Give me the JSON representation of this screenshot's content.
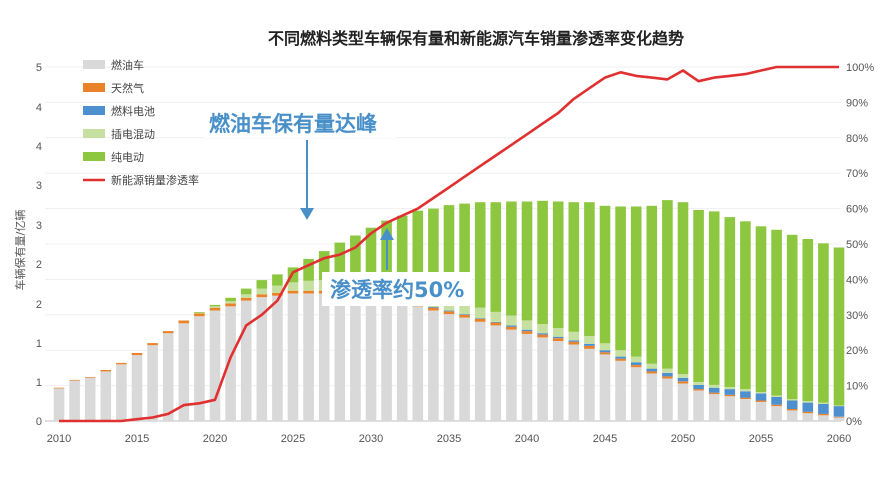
{
  "chart_data": {
    "type": "bar",
    "stacked": true,
    "title": "不同燃料类型车辆保有量和新能源汽车销量渗透率变化趋势",
    "ylabel": "车辆保有量/亿辆",
    "ylim": [
      0,
      5
    ],
    "y2lim": [
      0,
      100
    ],
    "y_ticks": [
      "0",
      "1",
      "1",
      "2",
      "2",
      "3",
      "3",
      "4",
      "4",
      "5"
    ],
    "y2_ticks": [
      "0%",
      "10%",
      "20%",
      "30%",
      "40%",
      "50%",
      "60%",
      "70%",
      "80%",
      "90%",
      "100%"
    ],
    "x_ticks": [
      "2010",
      "2015",
      "2020",
      "2025",
      "2030",
      "2035",
      "2040",
      "2045",
      "2050",
      "2055",
      "2060"
    ],
    "years": [
      2010,
      2011,
      2012,
      2013,
      2014,
      2015,
      2016,
      2017,
      2018,
      2019,
      2020,
      2021,
      2022,
      2023,
      2024,
      2025,
      2026,
      2027,
      2028,
      2029,
      2030,
      2031,
      2032,
      2033,
      2034,
      2035,
      2036,
      2037,
      2038,
      2039,
      2040,
      2041,
      2042,
      2043,
      2044,
      2045,
      2046,
      2047,
      2048,
      2049,
      2050,
      2051,
      2052,
      2053,
      2054,
      2055,
      2056,
      2057,
      2058,
      2059,
      2060
    ],
    "series": [
      {
        "name": "燃油车",
        "color": "#d9d9d9",
        "values": [
          0.46,
          0.57,
          0.61,
          0.7,
          0.8,
          0.93,
          1.07,
          1.24,
          1.38,
          1.48,
          1.56,
          1.62,
          1.7,
          1.75,
          1.77,
          1.8,
          1.8,
          1.8,
          1.8,
          1.78,
          1.75,
          1.71,
          1.67,
          1.62,
          1.56,
          1.51,
          1.46,
          1.4,
          1.35,
          1.29,
          1.23,
          1.18,
          1.13,
          1.08,
          1.02,
          0.94,
          0.85,
          0.76,
          0.67,
          0.6,
          0.53,
          0.43,
          0.38,
          0.35,
          0.31,
          0.27,
          0.21,
          0.15,
          0.11,
          0.08,
          0.05
        ]
      },
      {
        "name": "天然气",
        "color": "#e98228",
        "values": [
          0.01,
          0.01,
          0.01,
          0.02,
          0.02,
          0.03,
          0.03,
          0.03,
          0.04,
          0.04,
          0.04,
          0.04,
          0.04,
          0.04,
          0.04,
          0.04,
          0.04,
          0.04,
          0.04,
          0.04,
          0.04,
          0.04,
          0.04,
          0.04,
          0.04,
          0.04,
          0.04,
          0.04,
          0.04,
          0.04,
          0.04,
          0.04,
          0.04,
          0.04,
          0.04,
          0.03,
          0.03,
          0.03,
          0.03,
          0.03,
          0.03,
          0.02,
          0.02,
          0.02,
          0.02,
          0.02,
          0.02,
          0.02,
          0.02,
          0.02,
          0.01
        ]
      },
      {
        "name": "燃料电池",
        "color": "#4e8fcf",
        "values": [
          0,
          0,
          0,
          0,
          0,
          0,
          0,
          0,
          0,
          0,
          0,
          0,
          0,
          0,
          0,
          0,
          0,
          0,
          0,
          0,
          0,
          0,
          0,
          0.01,
          0.01,
          0.01,
          0.01,
          0.01,
          0.01,
          0.02,
          0.02,
          0.02,
          0.02,
          0.02,
          0.03,
          0.03,
          0.03,
          0.04,
          0.04,
          0.05,
          0.05,
          0.06,
          0.07,
          0.08,
          0.09,
          0.1,
          0.11,
          0.12,
          0.13,
          0.14,
          0.15
        ]
      },
      {
        "name": "插电混动",
        "color": "#c5e0a0",
        "values": [
          0,
          0,
          0,
          0,
          0,
          0,
          0,
          0,
          0,
          0.01,
          0.02,
          0.03,
          0.05,
          0.08,
          0.1,
          0.12,
          0.14,
          0.15,
          0.16,
          0.17,
          0.17,
          0.17,
          0.17,
          0.17,
          0.16,
          0.16,
          0.15,
          0.15,
          0.14,
          0.14,
          0.13,
          0.13,
          0.12,
          0.12,
          0.11,
          0.1,
          0.09,
          0.08,
          0.07,
          0.06,
          0.05,
          0.04,
          0.04,
          0.03,
          0.03,
          0.02,
          0.02,
          0.02,
          0.02,
          0.02,
          0.01
        ]
      },
      {
        "name": "纯电动",
        "color": "#8dc63f",
        "values": [
          0,
          0,
          0,
          0,
          0,
          0,
          0,
          0,
          0,
          0.01,
          0.02,
          0.05,
          0.08,
          0.12,
          0.16,
          0.21,
          0.31,
          0.41,
          0.52,
          0.63,
          0.77,
          0.91,
          1.02,
          1.13,
          1.23,
          1.33,
          1.41,
          1.49,
          1.55,
          1.61,
          1.68,
          1.74,
          1.79,
          1.83,
          1.89,
          1.94,
          2.03,
          2.12,
          2.23,
          2.38,
          2.43,
          2.43,
          2.45,
          2.4,
          2.37,
          2.34,
          2.34,
          2.32,
          2.29,
          2.25,
          2.23
        ]
      }
    ],
    "line": {
      "name": "新能源销量渗透率",
      "color": "#e03030",
      "axis": "right",
      "values": [
        0,
        0,
        0,
        0,
        0,
        0.5,
        1,
        2,
        4.5,
        5,
        6,
        18,
        27,
        30,
        34,
        42,
        44,
        46,
        47,
        49,
        53,
        56,
        58,
        60,
        63,
        66,
        69,
        72,
        75,
        78,
        81,
        84,
        87,
        91,
        94,
        97,
        98.5,
        97.5,
        97,
        96.5,
        99,
        96,
        97,
        97.5,
        98,
        99,
        100,
        100,
        100,
        100,
        100
      ]
    }
  },
  "annotations": {
    "peak_label": "燃油车保有量达峰",
    "penetration_label": "渗透率约50%"
  }
}
